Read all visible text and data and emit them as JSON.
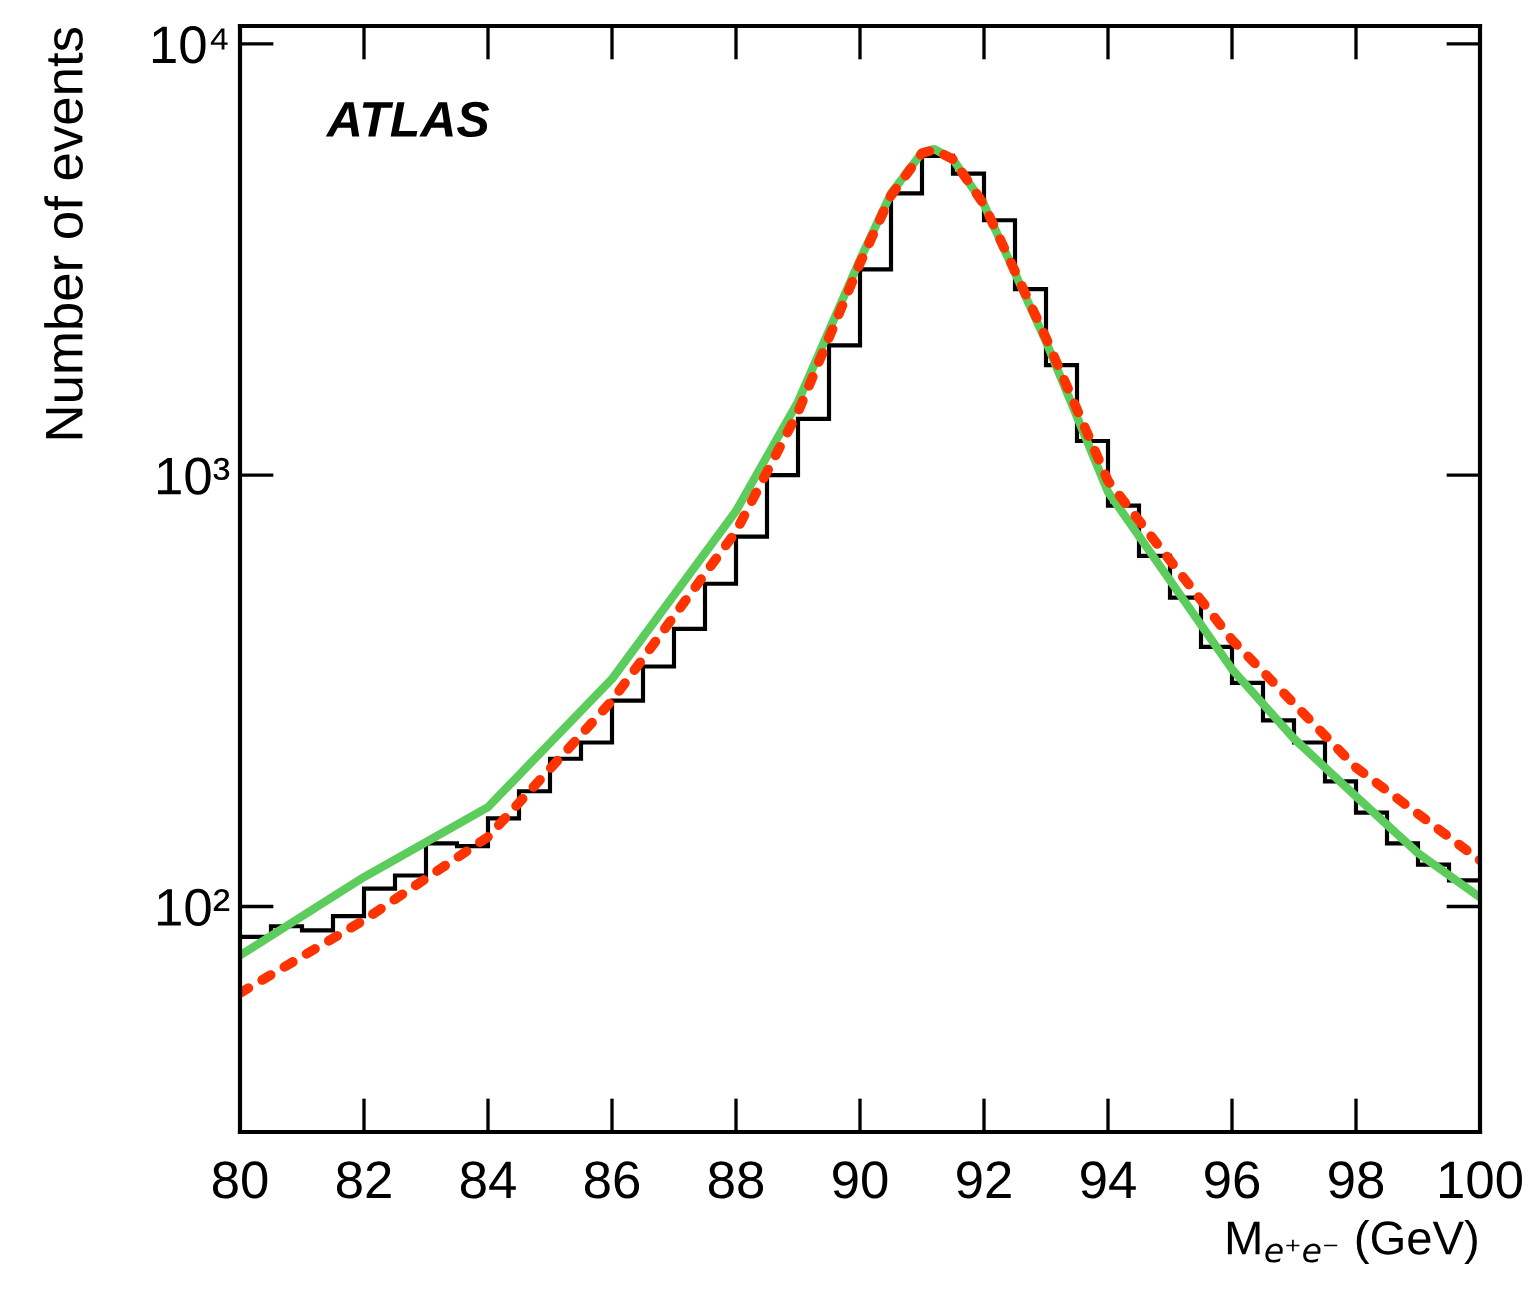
{
  "chart_data": {
    "type": "histogram",
    "xlabel": "M$_{e⁺e⁻}$ (GeV)",
    "ylabel": "Number of events",
    "annotations": [
      "ATLAS"
    ],
    "log": "y",
    "grid": false,
    "legend": false,
    "xlim": [
      80,
      100
    ],
    "xticks": [
      80,
      82,
      84,
      86,
      88,
      90,
      92,
      94,
      96,
      98,
      100
    ],
    "ylim": [
      30,
      11000
    ],
    "yticks": [
      {
        "value": 100,
        "label": "10²"
      },
      {
        "value": 1000,
        "label": "10³"
      },
      {
        "value": 10000,
        "label": "10⁴"
      }
    ],
    "series": [
      {
        "color": "#000000",
        "bins": [
          80,
          80.5,
          81,
          81.5,
          82,
          82.5,
          83,
          83.5,
          84,
          84.5,
          85,
          85.5,
          86,
          86.5,
          87,
          87.5,
          88,
          88.5,
          89,
          89.5,
          90,
          90.5,
          91,
          91.5,
          92,
          92.5,
          93,
          93.5,
          94,
          94.5,
          95,
          95.5,
          96,
          96.5,
          97,
          97.5,
          98,
          98.5,
          99,
          99.5,
          100
        ],
        "values": [
          85,
          90,
          88,
          95,
          110,
          118,
          140,
          138,
          160,
          185,
          220,
          240,
          300,
          360,
          440,
          560,
          720,
          1000,
          1350,
          2000,
          3000,
          4500,
          5500,
          5000,
          3900,
          2700,
          1800,
          1200,
          850,
          650,
          520,
          400,
          330,
          270,
          240,
          195,
          165,
          140,
          125,
          115
        ]
      },
      {
        "type": "line",
        "color": "#5ccc5c",
        "line_style": "solid",
        "x": [
          80,
          82,
          84,
          86,
          88,
          89,
          90,
          90.5,
          91,
          91.2,
          91.5,
          92,
          93,
          94,
          95,
          96,
          97,
          98,
          99,
          100
        ],
        "values": [
          77,
          117,
          170,
          337,
          826,
          1480,
          3160,
          4500,
          5600,
          5700,
          5400,
          4240,
          2040,
          915,
          570,
          355,
          245,
          180,
          133,
          105
        ]
      },
      {
        "type": "line",
        "color": "#ff3300",
        "line_style": "dotted",
        "x": [
          80,
          82,
          84,
          86,
          88,
          89,
          90,
          90.5,
          91,
          91.2,
          91.5,
          92,
          93,
          94,
          96,
          98,
          100
        ],
        "values": [
          63,
          93,
          145,
          300,
          740,
          1400,
          3100,
          4450,
          5580,
          5680,
          5400,
          4240,
          2080,
          970,
          415,
          210,
          128
        ]
      }
    ]
  }
}
